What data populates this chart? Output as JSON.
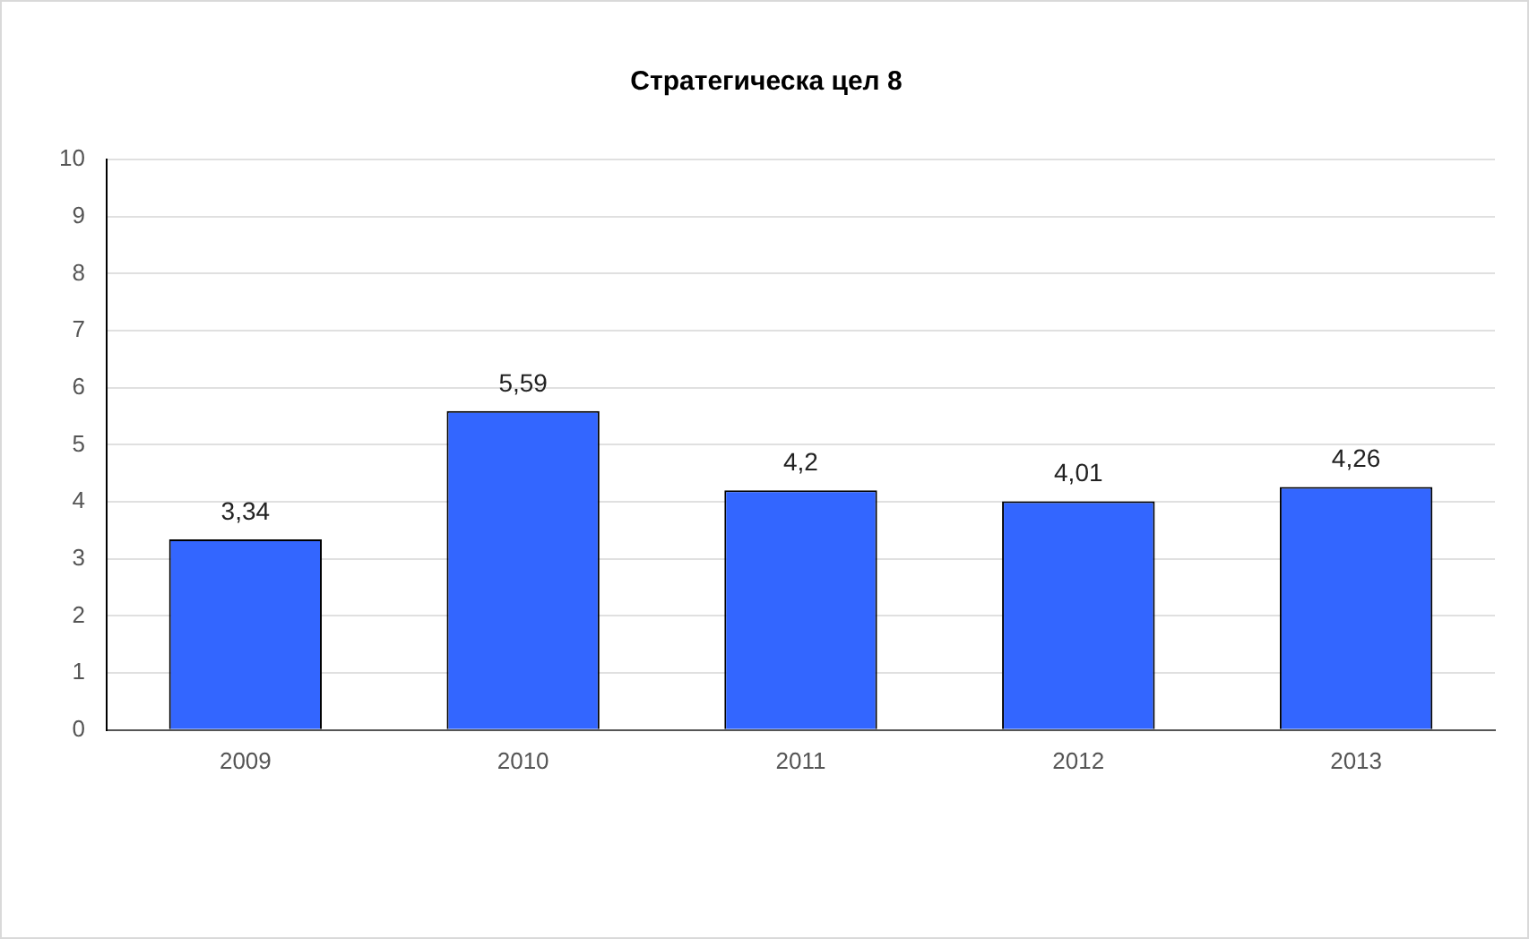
{
  "chart_data": {
    "type": "bar",
    "title": "Стратегическа цел 8",
    "categories": [
      "2009",
      "2010",
      "2011",
      "2012",
      "2013"
    ],
    "values": [
      3.34,
      5.59,
      4.2,
      4.01,
      4.26
    ],
    "value_labels": [
      "3,34",
      "5,59",
      "4,2",
      "4,01",
      "4,26"
    ],
    "color": "#3366ff",
    "ylim": [
      0,
      10
    ],
    "yticks": [
      0,
      1,
      2,
      3,
      4,
      5,
      6,
      7,
      8,
      9,
      10
    ],
    "grid": "y"
  }
}
